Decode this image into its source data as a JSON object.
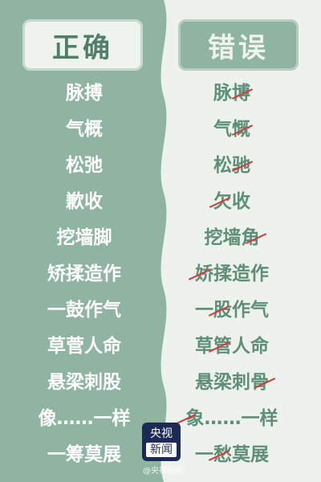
{
  "left_column": {
    "header": "正确",
    "items": [
      "脉搏",
      "气概",
      "松弛",
      "歉收",
      "挖墙脚",
      "矫揉造作",
      "一鼓作气",
      "草菅人命",
      "悬梁刺股",
      "像……一样",
      "一筹莫展"
    ]
  },
  "right_column": {
    "header": "错误",
    "items": [
      "脉博",
      "气慨",
      "松驰",
      "欠收",
      "挖墙角",
      "娇揉造作",
      "一股作气",
      "草管人命",
      "悬梁刺骨",
      "象……一样",
      "一愁莫展"
    ]
  },
  "logo": {
    "line1": "央视",
    "line2": "新闻"
  },
  "watermark": "@央视新闻",
  "colors": {
    "green": "#8fb4a2",
    "light": "#edf2ed",
    "mistake_mark": "#d43c3c"
  }
}
